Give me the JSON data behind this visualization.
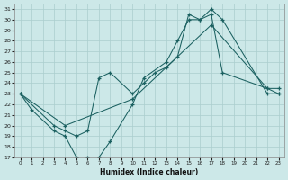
{
  "xlabel": "Humidex (Indice chaleur)",
  "xlim": [
    -0.5,
    23.5
  ],
  "ylim": [
    17,
    31.5
  ],
  "yticks": [
    17,
    18,
    19,
    20,
    21,
    22,
    23,
    24,
    25,
    26,
    27,
    28,
    29,
    30,
    31
  ],
  "xticks": [
    0,
    1,
    2,
    3,
    4,
    5,
    6,
    7,
    8,
    9,
    10,
    11,
    12,
    13,
    14,
    15,
    16,
    17,
    18,
    19,
    20,
    21,
    22,
    23
  ],
  "background_color": "#cce8e8",
  "grid_color": "#aacece",
  "line_color": "#1a6060",
  "line1_x": [
    0,
    1,
    3,
    4,
    5,
    6,
    7,
    8,
    10,
    11,
    13,
    14,
    15,
    16,
    17,
    18,
    22,
    23
  ],
  "line1_y": [
    23,
    21.5,
    19.5,
    19,
    17,
    17,
    17,
    18.5,
    22,
    24.5,
    26,
    28,
    30,
    30,
    31,
    30,
    23,
    23
  ],
  "line2_x": [
    0,
    3,
    4,
    5,
    6,
    7,
    8,
    10,
    11,
    12,
    13,
    14,
    15,
    16,
    17,
    18,
    22,
    23
  ],
  "line2_y": [
    23,
    20,
    19.5,
    19,
    19.5,
    24.5,
    25,
    23,
    24,
    25,
    25.5,
    26.5,
    30.5,
    30,
    30.5,
    25,
    23.5,
    23
  ],
  "line3_x": [
    0,
    4,
    10,
    17,
    22,
    23
  ],
  "line3_y": [
    23,
    20,
    22.5,
    29.5,
    23.5,
    23.5
  ]
}
